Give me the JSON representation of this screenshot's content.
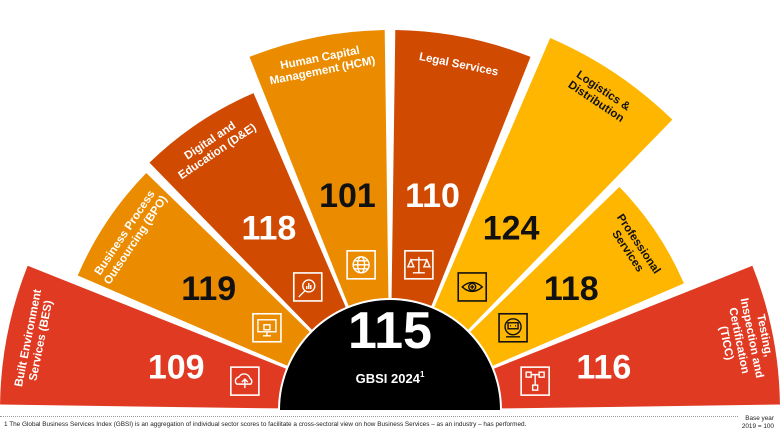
{
  "chart_data": {
    "type": "radial-bar",
    "center": {
      "value": "115",
      "label": "GBSI 2024",
      "label_sup": "1"
    },
    "sectors": [
      {
        "name": "Built Environment Services (BES)",
        "value": 109,
        "color": "#e03a22",
        "icon": "cloud-upload-icon"
      },
      {
        "name": "Business Process Outsourcing (BPO)",
        "value": 119,
        "color": "#eb8c00",
        "icon": "secure-computer-icon"
      },
      {
        "name": "Digital and Education (D&E)",
        "value": 118,
        "color": "#d04a02",
        "icon": "search-chart-icon"
      },
      {
        "name": "Human Capital Management (HCM)",
        "value": 101,
        "color": "#eb8c00",
        "icon": "globe-icon"
      },
      {
        "name": "Legal Services",
        "value": 110,
        "color": "#d04a02",
        "icon": "scales-icon"
      },
      {
        "name": "Logistics & Distribution",
        "value": 124,
        "color": "#ffb600",
        "icon": "eye-icon"
      },
      {
        "name": "Professional Services",
        "value": 118,
        "color": "#ffb600",
        "icon": "robot-icon"
      },
      {
        "name": "Testing, Inspection and Certification (TICC)",
        "value": 116,
        "color": "#e03a22",
        "icon": "flow-chart-icon"
      }
    ]
  },
  "footnote": "1 The Global Business Services Index (GBSI) is an aggregation of individual sector scores to facilitate a cross-sectoral view on how Business Services – as an industry – has performed.",
  "base_year": {
    "line1": "Base year",
    "line2": "2019 = 100"
  }
}
